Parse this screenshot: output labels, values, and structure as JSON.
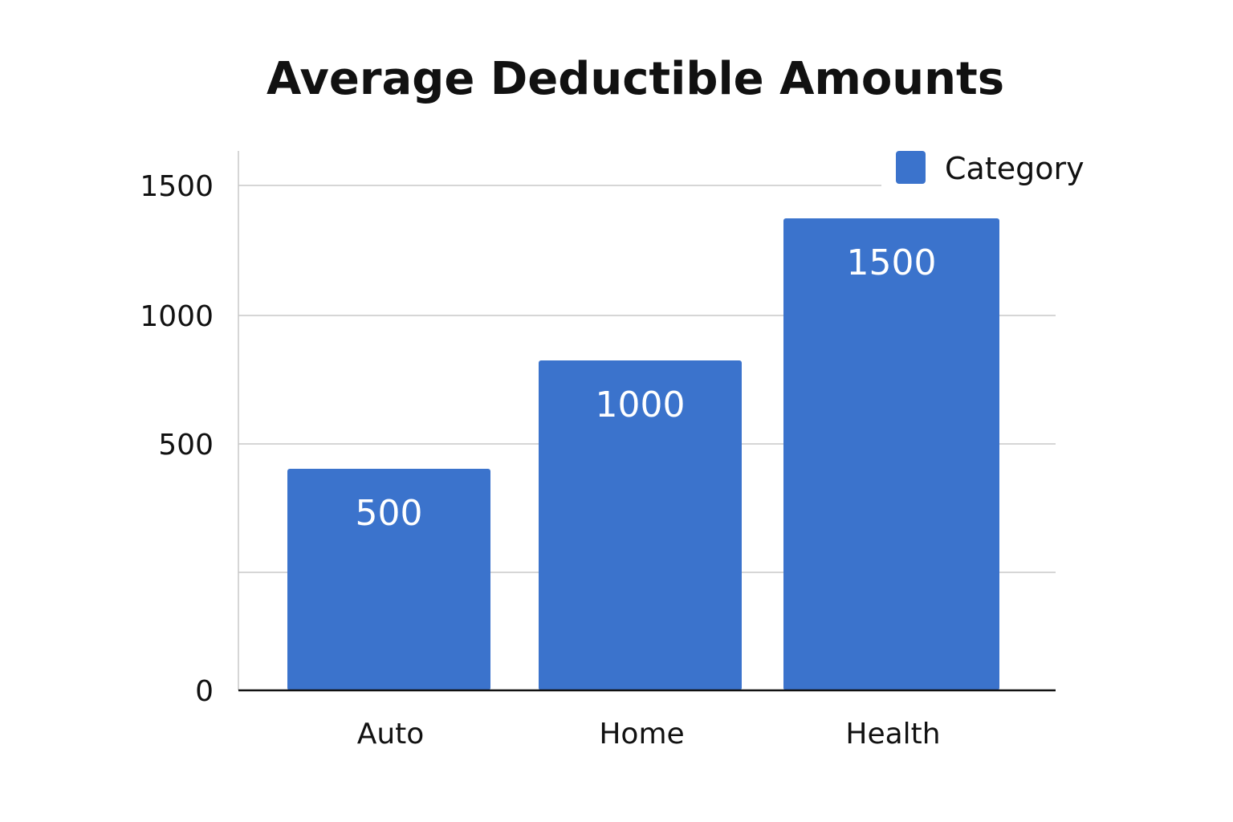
{
  "chart_data": {
    "type": "bar",
    "title": "Average Deductible Amounts",
    "categories": [
      "Auto",
      "Home",
      "Health"
    ],
    "series": [
      {
        "name": "Category",
        "values": [
          500,
          1000,
          1500
        ],
        "color": "#3b73cc"
      }
    ],
    "data_labels": [
      "500",
      "1000",
      "1500"
    ],
    "y_ticks": [
      {
        "value": 0,
        "label": "0"
      },
      {
        "value": 500,
        "label": "500"
      },
      {
        "value": 1000,
        "label": "1000"
      },
      {
        "value": 1500,
        "label": "1500"
      }
    ],
    "ylim": [
      0,
      1500
    ],
    "grid": true,
    "legend": "top-right"
  }
}
